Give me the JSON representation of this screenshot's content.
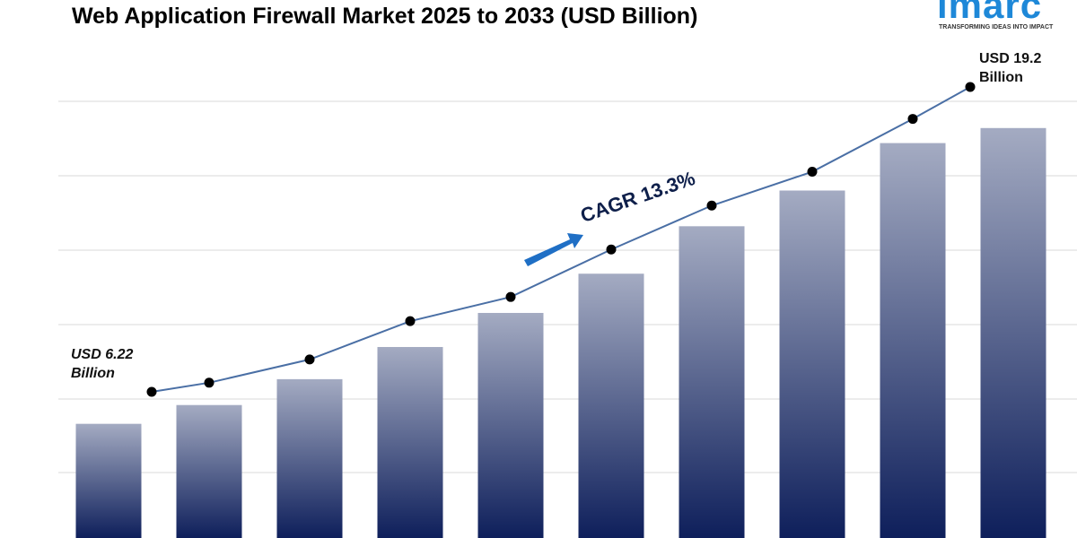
{
  "chart_data": {
    "type": "bar_line",
    "title": "Web Application Firewall Market 2025 to 2033 (USD Billion)",
    "logo": {
      "name": "imarc",
      "tagline": "TRANSFORMING IDEAS INTO IMPACT"
    },
    "annotation": "CAGR 13.3%",
    "categories": [
      null,
      null,
      null,
      null,
      null,
      null,
      null,
      null,
      null,
      null
    ],
    "ylim": [
      0,
      22.9
    ],
    "grid": true,
    "series": [
      {
        "kind": "bar",
        "color": "#0e1f5b",
        "values": [
          4.86,
          5.66,
          6.76,
          8.13,
          9.58,
          11.25,
          13.27,
          14.79,
          16.81,
          17.45
        ]
      },
      {
        "kind": "line",
        "color": "#4a6fa5",
        "values": [
          6.22,
          6.61,
          7.6,
          9.23,
          10.26,
          12.28,
          14.15,
          15.59,
          17.84,
          19.2
        ],
        "value_labels": [
          "USD 6.22 Billion",
          null,
          null,
          null,
          null,
          null,
          null,
          null,
          null,
          "USD 19.2 Billion"
        ]
      }
    ]
  }
}
